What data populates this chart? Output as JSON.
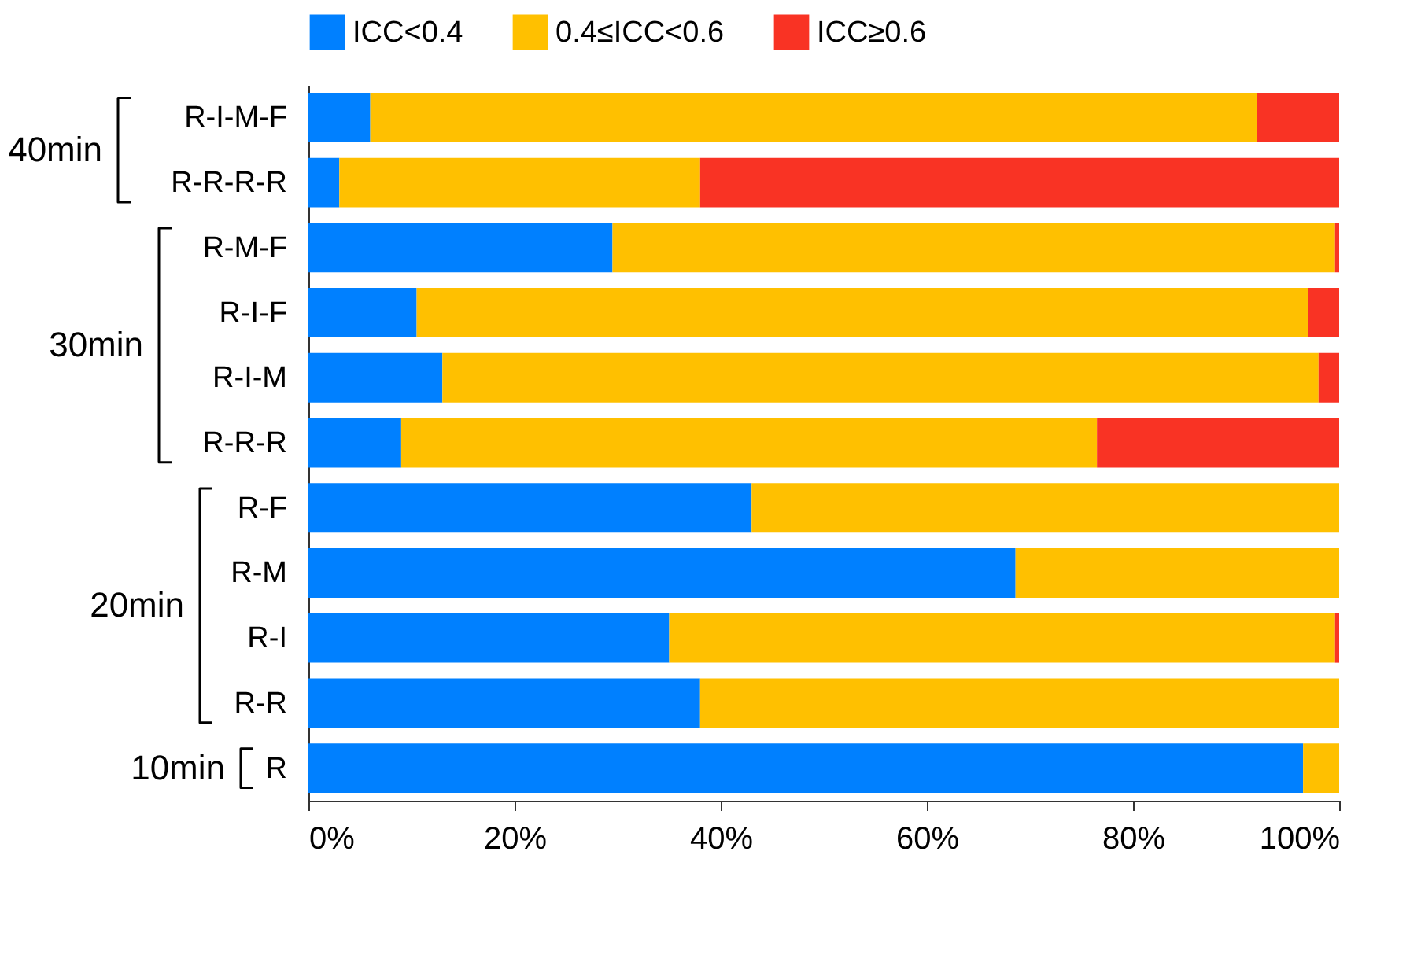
{
  "chart_data": {
    "type": "bar",
    "orientation": "horizontal",
    "stacked": true,
    "categories": [
      "R-I-M-F",
      "R-R-R-R",
      "R-M-F",
      "R-I-F",
      "R-I-M",
      "R-R-R",
      "R-F",
      "R-M",
      "R-I",
      "R-R",
      "R"
    ],
    "series": [
      {
        "name": "ICC<0.4",
        "color": "#0080ff",
        "values": [
          6.0,
          3.0,
          29.5,
          10.5,
          13.0,
          9.0,
          43.0,
          68.6,
          35.0,
          38.0,
          96.5
        ]
      },
      {
        "name": "0.4≤ICC<0.6",
        "color": "#ffc000",
        "values": [
          86.0,
          35.0,
          70.1,
          86.5,
          85.0,
          67.5,
          57.0,
          31.4,
          64.6,
          62.0,
          3.5
        ]
      },
      {
        "name": "ICC≥0.6",
        "color": "#f93324",
        "values": [
          8.0,
          62.0,
          0.4,
          3.0,
          2.0,
          23.5,
          0,
          0,
          0.4,
          0,
          0
        ]
      }
    ],
    "xlim": [
      0,
      100
    ],
    "xticks": [
      {
        "value": 0,
        "label": "0%"
      },
      {
        "value": 20,
        "label": "20%"
      },
      {
        "value": 40,
        "label": "40%"
      },
      {
        "value": 60,
        "label": "60%"
      },
      {
        "value": 80,
        "label": "80%"
      },
      {
        "value": 100,
        "label": "100%"
      }
    ],
    "legend": "top",
    "grid": false,
    "annotations": [
      "40min",
      "30min",
      "20min",
      "10min"
    ]
  }
}
